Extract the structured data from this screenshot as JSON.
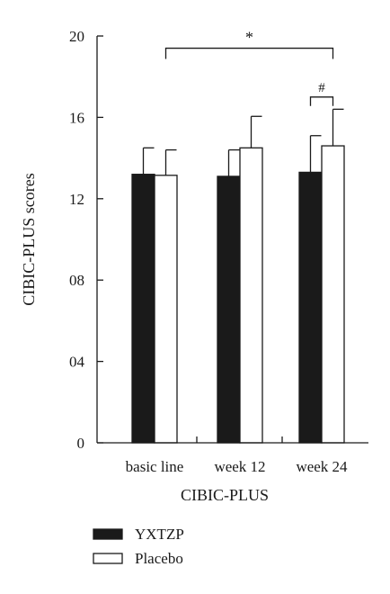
{
  "chart_data": {
    "type": "bar",
    "title": "",
    "xlabel": "CIBIC-PLUS",
    "ylabel": "CIBIC-PLUS scores",
    "ylim": [
      0,
      20
    ],
    "yticks": [
      0,
      4,
      8,
      12,
      16,
      20
    ],
    "ytick_labels": [
      "0",
      "04",
      "08",
      "12",
      "16",
      "20"
    ],
    "categories": [
      "basic line",
      "week 12",
      "week 24"
    ],
    "series": [
      {
        "name": "YXTZP",
        "color": "#1a1a1a",
        "fill": "solid",
        "values": [
          13.2,
          13.1,
          13.3
        ],
        "errors": [
          1.3,
          1.3,
          1.8
        ]
      },
      {
        "name": "Placebo",
        "color": "#1a1a1a",
        "fill": "hollow",
        "values": [
          13.15,
          14.5,
          14.6
        ],
        "errors": [
          1.25,
          1.55,
          1.8
        ]
      }
    ],
    "grid": false,
    "legend_position": "bottom-left",
    "annotations": [
      {
        "label": "*",
        "type": "bracket",
        "from_category": 0,
        "to_category": 2,
        "from_series": 1,
        "to_series": 1,
        "level": 19.4
      },
      {
        "label": "#",
        "type": "bracket",
        "from_category": 2,
        "to_category": 2,
        "from_series": 0,
        "to_series": 1,
        "level": 17.0
      }
    ]
  }
}
